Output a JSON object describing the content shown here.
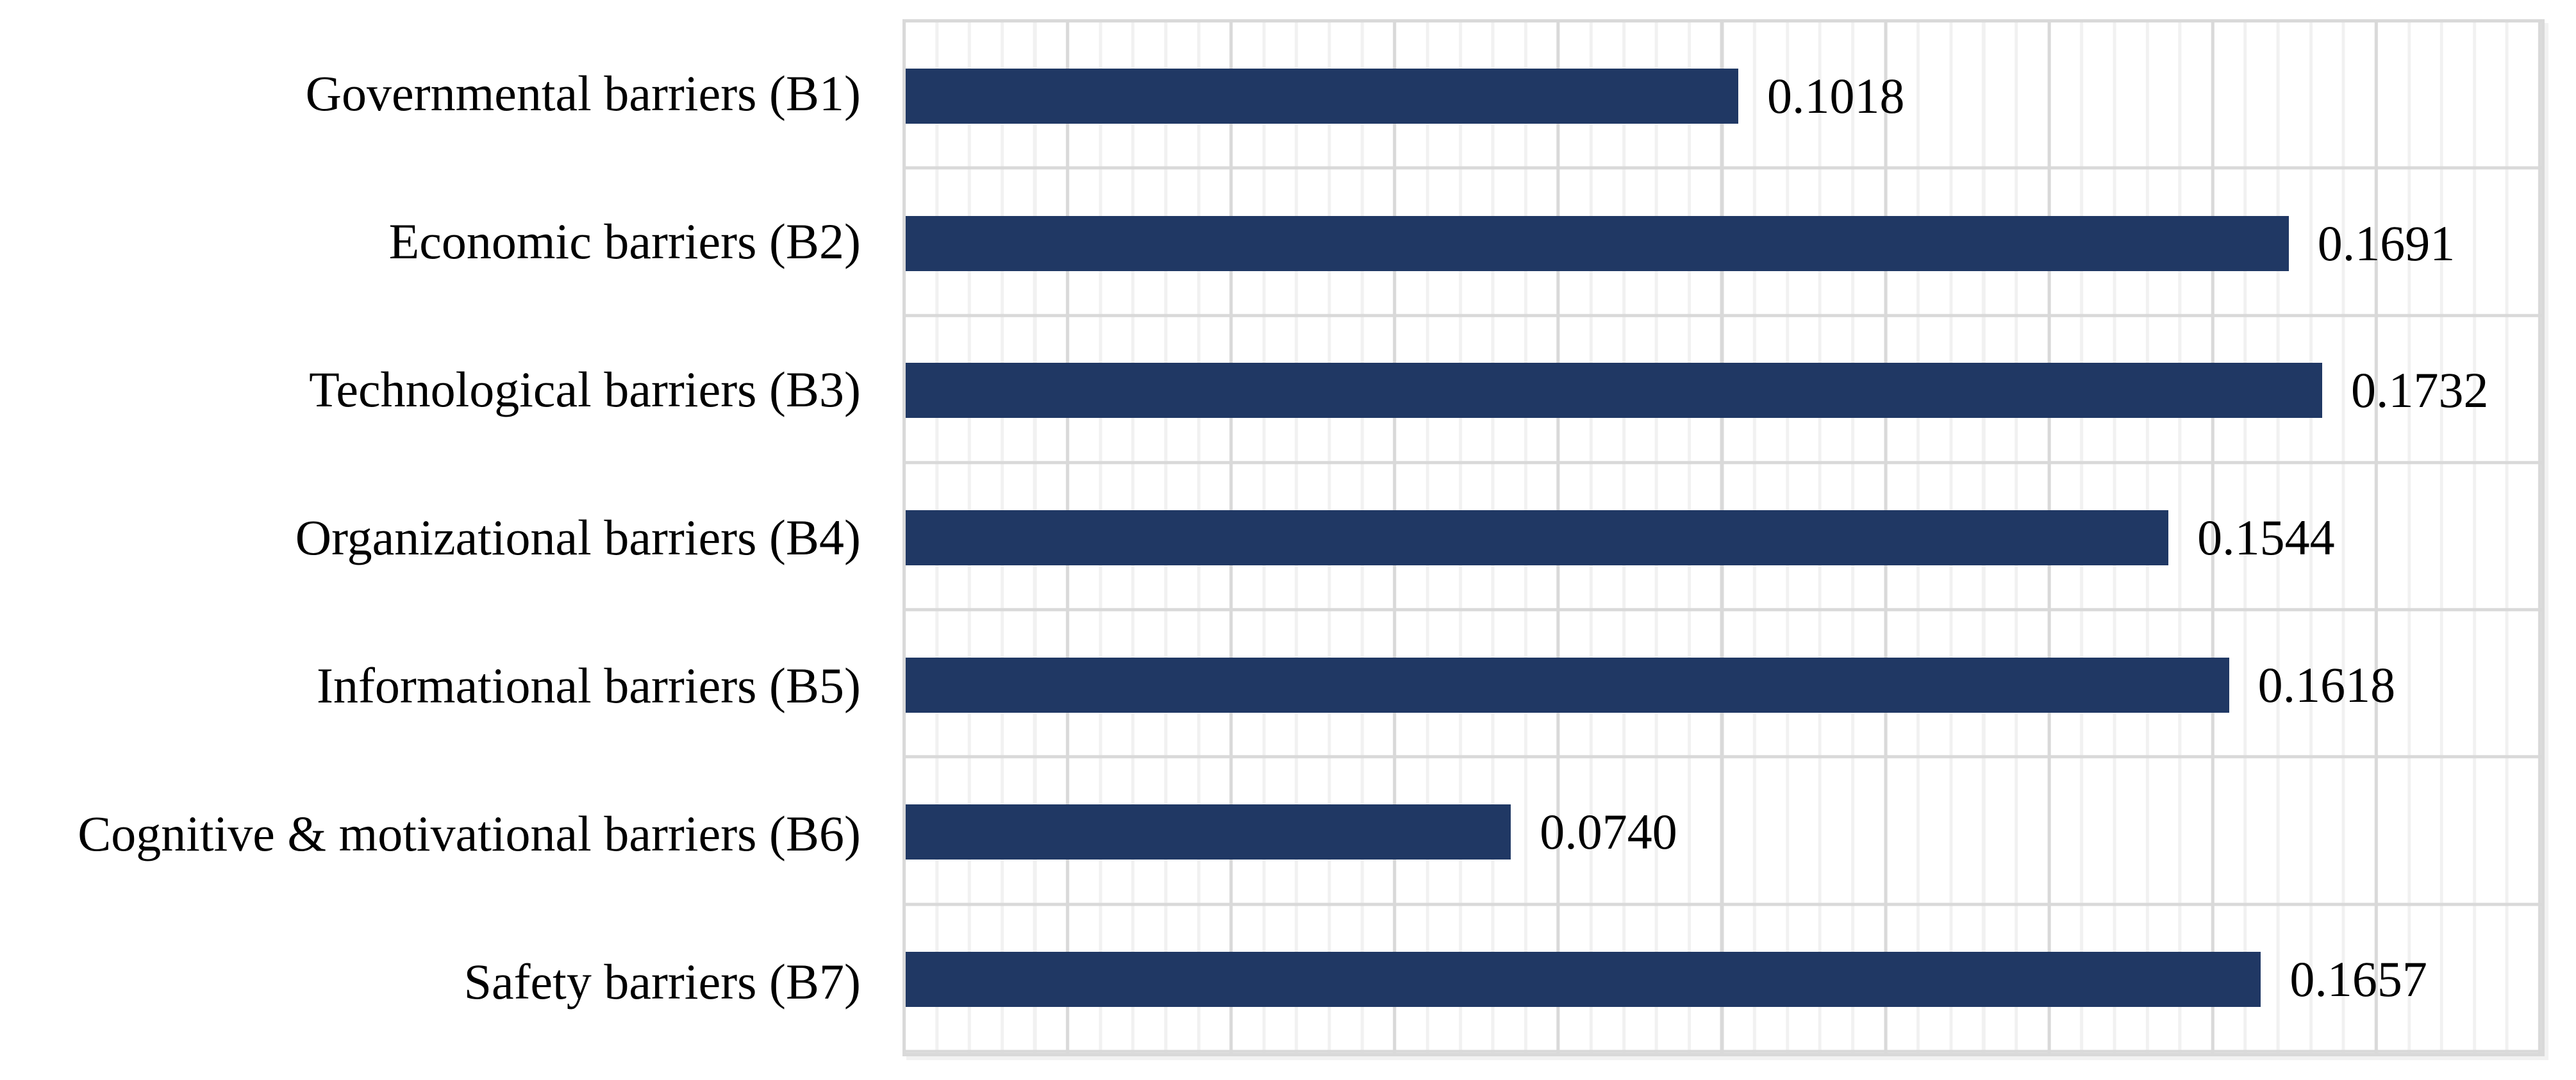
{
  "figure": {
    "background": "#ffffff"
  },
  "chart_data": {
    "type": "bar",
    "orientation": "horizontal",
    "title": "",
    "xlabel": "",
    "ylabel": "",
    "categories": [
      "Governmental barriers (B1)",
      "Economic barriers (B2)",
      "Technological barriers (B3)",
      "Organizational barriers (B4)",
      "Informational barriers (B5)",
      "Cognitive & motivational barriers (B6)",
      "Safety barriers (B7)"
    ],
    "values": [
      0.1018,
      0.1691,
      0.1732,
      0.1544,
      0.1618,
      0.074,
      0.1657
    ],
    "value_labels": [
      "0.1018",
      "0.1691",
      "0.1732",
      "0.1544",
      "0.1618",
      "0.0740",
      "0.1657"
    ],
    "xlim": [
      0,
      0.2
    ],
    "x_major_unit": 0.02,
    "x_minor_unit": 0.004,
    "axis_tick_labels": "none",
    "legend": "none",
    "grid": "vertical major + minor, horizontal major between categories",
    "colors": {
      "bar": "#203864",
      "value_label": "#000000",
      "category_label": "#000000",
      "gridline_major": "#d9d9d9",
      "gridline_minor": "#f1f1f1",
      "plot_border": "#d9d9d9"
    }
  }
}
